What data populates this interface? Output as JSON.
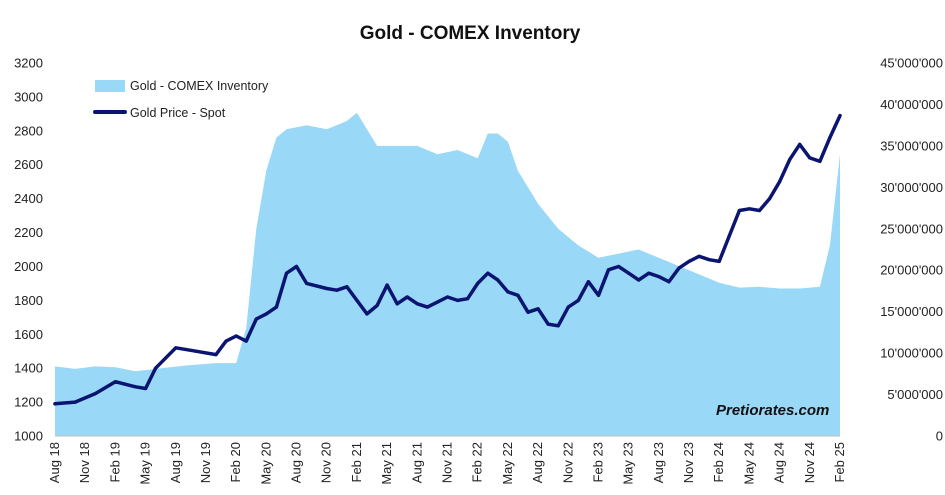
{
  "chart_data": {
    "type": "area+line",
    "title": "Gold - COMEX Inventory",
    "watermark": "Pretiorates.com",
    "legend": {
      "placement": "top-left",
      "entries": [
        "Gold - COMEX Inventory",
        "Gold Price - Spot"
      ]
    },
    "colors": {
      "inventory_fill": "#99d8f7",
      "price_line": "#0b1470"
    },
    "x_tick_labels": [
      "Aug 18",
      "Nov 18",
      "Feb 19",
      "May 19",
      "Aug 19",
      "Nov 19",
      "Feb 20",
      "May 20",
      "Aug 20",
      "Nov 20",
      "Feb 21",
      "May 21",
      "Aug 21",
      "Nov 21",
      "Feb 22",
      "May 22",
      "Aug 22",
      "Nov 22",
      "Feb 23",
      "May 23",
      "Aug 23",
      "Nov 23",
      "Feb 24",
      "May 24",
      "Aug 24",
      "Nov 24",
      "Feb 25"
    ],
    "y_left": {
      "range": [
        1000,
        3200
      ],
      "ticks": [
        "1000",
        "1200",
        "1400",
        "1600",
        "1800",
        "2000",
        "2200",
        "2400",
        "2600",
        "2800",
        "3000",
        "3200"
      ]
    },
    "y_right": {
      "range": [
        0,
        45000000
      ],
      "ticks": [
        "0",
        "5'000'000",
        "10'000'000",
        "15'000'000",
        "20'000'000",
        "25'000'000",
        "30'000'000",
        "35'000'000",
        "40'000'000",
        "45'000'000"
      ]
    },
    "grid": false,
    "series": [
      {
        "name": "Gold - COMEX Inventory",
        "axis": "right",
        "kind": "area",
        "x": [
          "2018-08",
          "2018-10",
          "2018-12",
          "2019-02",
          "2019-04",
          "2019-06",
          "2019-09",
          "2019-12",
          "2020-02",
          "2020-03",
          "2020-04",
          "2020-05",
          "2020-06",
          "2020-07",
          "2020-09",
          "2020-11",
          "2021-01",
          "2021-02",
          "2021-04",
          "2021-06",
          "2021-08",
          "2021-10",
          "2021-12",
          "2022-02",
          "2022-03",
          "2022-04",
          "2022-05",
          "2022-06",
          "2022-08",
          "2022-10",
          "2022-12",
          "2023-02",
          "2023-04",
          "2023-06",
          "2023-08",
          "2023-10",
          "2023-12",
          "2024-02",
          "2024-04",
          "2024-06",
          "2024-08",
          "2024-10",
          "2024-12",
          "2025-01",
          "2025-02"
        ],
        "values": [
          8400000,
          8100000,
          8400000,
          8300000,
          7800000,
          8100000,
          8500000,
          8800000,
          8800000,
          13000000,
          25000000,
          32000000,
          36000000,
          37000000,
          37500000,
          37000000,
          38000000,
          39000000,
          35000000,
          35000000,
          35000000,
          34000000,
          34500000,
          33500000,
          36500000,
          36500000,
          35500000,
          32000000,
          28000000,
          25000000,
          23000000,
          21500000,
          22000000,
          22500000,
          21500000,
          20500000,
          19500000,
          18500000,
          17900000,
          18000000,
          17800000,
          17800000,
          18000000,
          23000000,
          34000000
        ]
      },
      {
        "name": "Gold Price - Spot",
        "axis": "left",
        "kind": "line",
        "x": [
          "2018-08",
          "2018-10",
          "2018-12",
          "2019-02",
          "2019-04",
          "2019-05",
          "2019-06",
          "2019-08",
          "2019-10",
          "2019-12",
          "2020-01",
          "2020-02",
          "2020-03",
          "2020-04",
          "2020-05",
          "2020-06",
          "2020-07",
          "2020-08",
          "2020-09",
          "2020-11",
          "2020-12",
          "2021-01",
          "2021-02",
          "2021-03",
          "2021-04",
          "2021-05",
          "2021-06",
          "2021-07",
          "2021-08",
          "2021-09",
          "2021-10",
          "2021-11",
          "2021-12",
          "2022-01",
          "2022-02",
          "2022-03",
          "2022-04",
          "2022-05",
          "2022-06",
          "2022-07",
          "2022-08",
          "2022-09",
          "2022-10",
          "2022-11",
          "2022-12",
          "2023-01",
          "2023-02",
          "2023-03",
          "2023-04",
          "2023-05",
          "2023-06",
          "2023-07",
          "2023-08",
          "2023-09",
          "2023-10",
          "2023-11",
          "2023-12",
          "2024-01",
          "2024-02",
          "2024-03",
          "2024-04",
          "2024-05",
          "2024-06",
          "2024-07",
          "2024-08",
          "2024-09",
          "2024-10",
          "2024-11",
          "2024-12",
          "2025-01",
          "2025-02"
        ],
        "values": [
          1190,
          1200,
          1250,
          1320,
          1290,
          1280,
          1400,
          1520,
          1500,
          1480,
          1560,
          1590,
          1560,
          1690,
          1720,
          1760,
          1960,
          2000,
          1900,
          1870,
          1860,
          1880,
          1800,
          1720,
          1770,
          1890,
          1780,
          1820,
          1780,
          1760,
          1790,
          1820,
          1800,
          1810,
          1900,
          1960,
          1920,
          1850,
          1830,
          1730,
          1750,
          1660,
          1650,
          1760,
          1800,
          1910,
          1830,
          1980,
          2000,
          1960,
          1920,
          1960,
          1940,
          1910,
          1990,
          2030,
          2060,
          2040,
          2030,
          2180,
          2330,
          2340,
          2330,
          2400,
          2500,
          2630,
          2720,
          2640,
          2620,
          2760,
          2890
        ]
      }
    ]
  }
}
